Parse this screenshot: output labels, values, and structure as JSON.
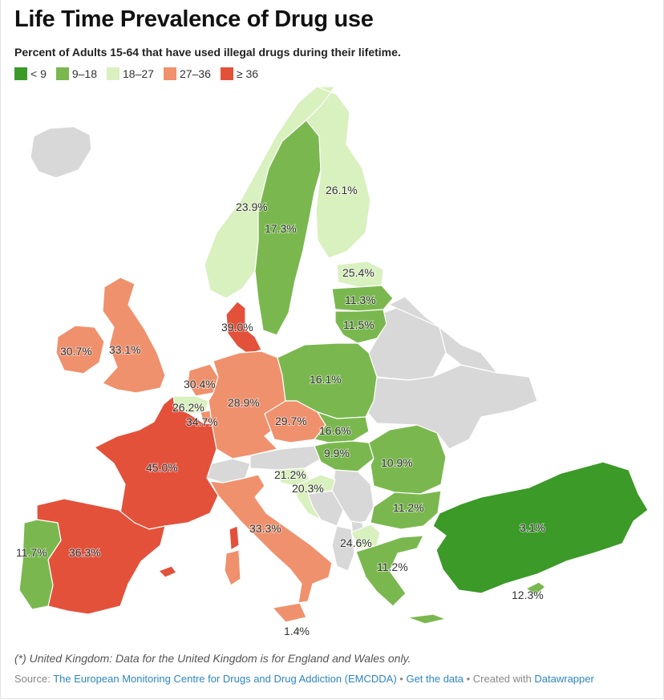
{
  "title": "Life Time Prevalence of Drug use",
  "subtitle": "Percent of Adults 15-64 that have used illegal drugs during their lifetime.",
  "legend": [
    {
      "label": "< 9",
      "color": "#3c9a28"
    },
    {
      "label": "9–18",
      "color": "#7ab84f"
    },
    {
      "label": "18–27",
      "color": "#d9f0bf"
    },
    {
      "label": "27–36",
      "color": "#f0916d"
    },
    {
      "label": "≥ 36",
      "color": "#e3513a"
    }
  ],
  "no_data_color": "#d8d8d8",
  "map_labels": {
    "norway": "23.9%",
    "sweden": "17.3%",
    "finland": "26.1%",
    "estonia": "25.4%",
    "latvia": "11.3%",
    "lithuania": "11.5%",
    "denmark": "39.0%",
    "ireland": "30.7%",
    "uk": "33.1%",
    "netherlands": "30.4%",
    "belgium": "26.2%",
    "luxembourg": "34.7%",
    "germany": "28.9%",
    "poland": "16.1%",
    "czechia": "29.7%",
    "slovakia": "16.6%",
    "hungary": "9.9%",
    "romania": "10.9%",
    "bulgaria": "11.2%",
    "france": "45.0%",
    "slovenia": "21.2%",
    "croatia": "20.3%",
    "italy": "33.3%",
    "spain": "36.3%",
    "portugal": "11.7%",
    "north_macedonia": "24.6%",
    "greece": "11.2%",
    "turkey": "3.1%",
    "cyprus": "12.3%",
    "malta": "1.4%"
  },
  "note": "(*) United Kingdom: Data for the United Kingdom is for England and Wales only.",
  "source": {
    "prefix": "Source: ",
    "link": "The European Monitoring Centre for Drugs and Drug Addiction (EMCDDA)",
    "sep1": " • ",
    "get_data": "Get the data",
    "sep2": " • Created with ",
    "datawrapper": "Datawrapper"
  }
}
